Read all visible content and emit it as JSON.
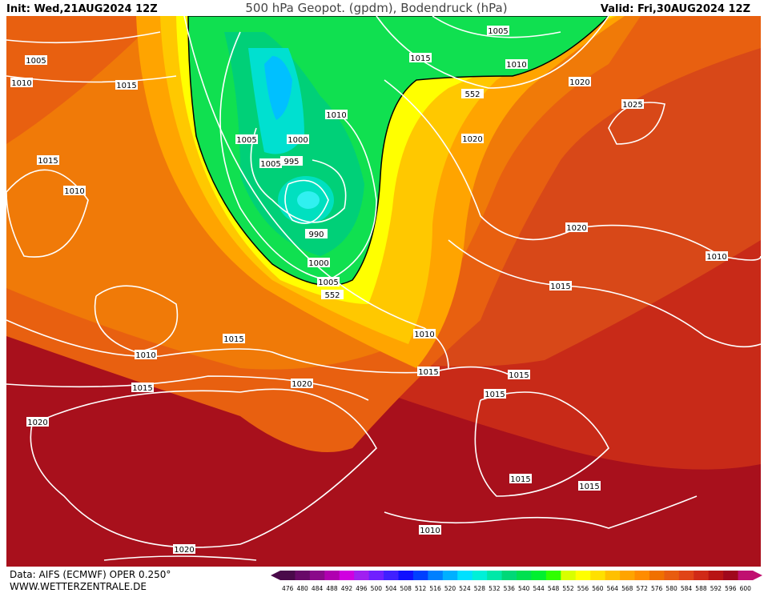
{
  "header": {
    "init": "Init: Wed,21AUG2024 12Z",
    "title": "500 hPa Geopot. (gpdm), Bodendruck (hPa)",
    "valid": "Valid: Fri,30AUG2024 12Z"
  },
  "footer": {
    "source": "Data: AIFS (ECMWF) OPER 0.250°",
    "site": "WWW.WETTERZENTRALE.DE"
  },
  "colorbar": {
    "levels": [
      476,
      480,
      484,
      488,
      492,
      496,
      500,
      504,
      508,
      512,
      516,
      520,
      524,
      528,
      532,
      536,
      540,
      544,
      548,
      552,
      556,
      560,
      564,
      568,
      572,
      576,
      580,
      584,
      588,
      592,
      596,
      600
    ],
    "colors": [
      "#4a0a4a",
      "#680a68",
      "#8a0a8a",
      "#b000b0",
      "#d000e0",
      "#a020f0",
      "#7020ff",
      "#4020ff",
      "#1010ff",
      "#0040ff",
      "#0080ff",
      "#00b0ff",
      "#00e0ff",
      "#00f0d8",
      "#00e8a8",
      "#00d878",
      "#00e050",
      "#00f030",
      "#30ff00",
      "#d8ff00",
      "#ffff00",
      "#ffe000",
      "#ffc000",
      "#ffa400",
      "#ff8c00",
      "#f07000",
      "#e85c10",
      "#e04418",
      "#d02a18",
      "#b81414",
      "#a0081c",
      "#c01070"
    ]
  },
  "isobar_labels": [
    1005,
    1015,
    1010,
    1005,
    1010,
    1015,
    1020,
    552,
    1025,
    1010,
    1005,
    1000,
    1020,
    1005,
    995,
    1015,
    1010,
    990,
    1020,
    1000,
    1010,
    1005,
    552,
    1015,
    1015,
    1010,
    1010,
    1015,
    1015,
    1015,
    1020,
    1015,
    1020,
    1015,
    1015,
    1010,
    1020
  ]
}
